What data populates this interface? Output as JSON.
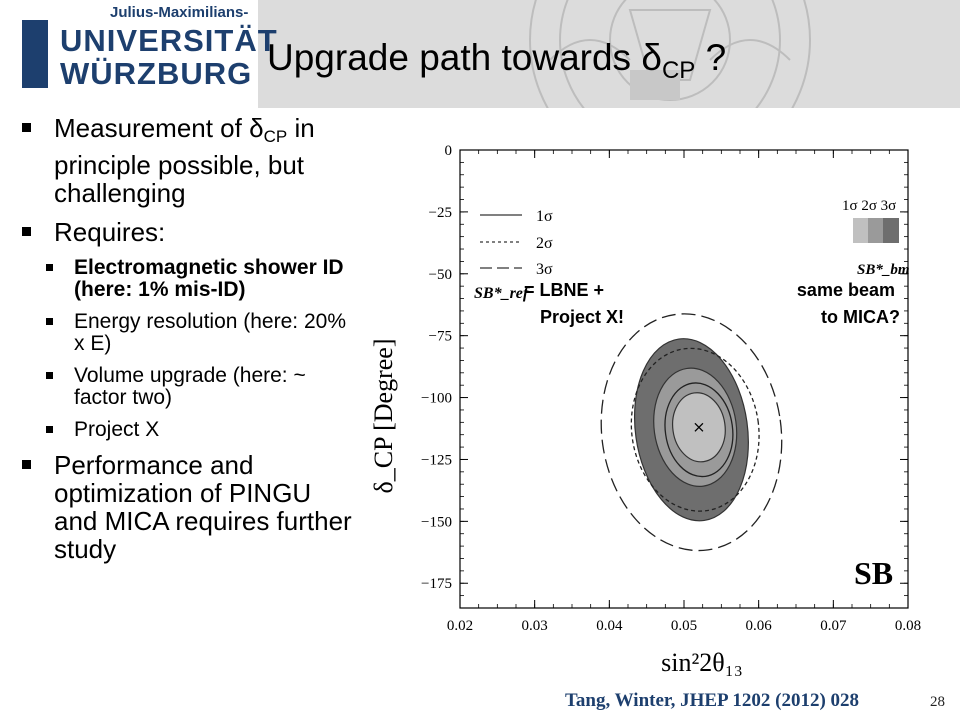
{
  "header": {
    "logo_top": "Julius-Maximilians-",
    "logo_line1": "UNIVERSITÄT",
    "logo_line2": "WÜRZBURG",
    "title_main": "Upgrade path towards ",
    "title_delta": "δ",
    "title_sub": "CP",
    "title_end": " ?"
  },
  "bullets": {
    "b1_text": "Measurement of ",
    "b1_delta": "δ",
    "b1_sub": "CP",
    "b1_rest": "in principle possible, but challenging",
    "b2_text": "Requires:",
    "sub1": "Electromagnetic shower ID (here: 1% mis-ID)",
    "sub2": "Energy resolution (here: 20% x E)",
    "sub3": "Volume upgrade (here: ~ factor two)",
    "sub4": "Project X",
    "b3_text": "Performance and optimization of PINGU and MICA requires further study"
  },
  "chart_data": {
    "type": "contour",
    "xlabel": "sin²2θ₁₃",
    "ylabel": "δ_CP [Degree]",
    "xlim": [
      0.02,
      0.08
    ],
    "ylim": [
      -185,
      0
    ],
    "x_ticks": [
      "0.02",
      "0.03",
      "0.04",
      "0.05",
      "0.06",
      "0.07",
      "0.08"
    ],
    "y_ticks": [
      "0",
      "−25",
      "−50",
      "−75",
      "−100",
      "−125",
      "−150",
      "−175"
    ],
    "best_fit": {
      "x": 0.052,
      "y": -112
    },
    "legend_ref": {
      "labels": [
        "1σ",
        "2σ",
        "3σ"
      ],
      "name": "SB*_ref",
      "annotation": "= LBNE + Project X!"
    },
    "legend_bm": {
      "labels": [
        "1σ 2σ 3σ"
      ],
      "name": "SB*_bm",
      "annotation": "same beam to MICA?"
    },
    "panel_label": "SB",
    "series": [
      {
        "name": "SB*_bm 1σ",
        "center": [
          0.052,
          -112
        ],
        "half_width": 0.0035,
        "half_height": 14,
        "fill": "#c0c0c0"
      },
      {
        "name": "SB*_bm 2σ",
        "center": [
          0.0515,
          -112
        ],
        "half_width": 0.0055,
        "half_height": 24,
        "fill": "#9a9a9a"
      },
      {
        "name": "SB*_bm 3σ",
        "center": [
          0.051,
          -113
        ],
        "half_width": 0.0075,
        "half_height": 37,
        "fill": "#6e6e6e"
      },
      {
        "name": "SB*_ref 1σ",
        "center": [
          0.052,
          -113
        ],
        "half_width": 0.0045,
        "half_height": 19,
        "style": "solid"
      },
      {
        "name": "SB*_ref 2σ",
        "center": [
          0.0515,
          -113
        ],
        "half_width": 0.0085,
        "half_height": 33,
        "style": "short-dash"
      },
      {
        "name": "SB*_ref 3σ",
        "center": [
          0.051,
          -114
        ],
        "half_width": 0.012,
        "half_height": 48,
        "style": "long-dash"
      }
    ]
  },
  "citation": "Tang, Winter, JHEP 1202 (2012) 028",
  "page_number": "28",
  "colors": {
    "logo_blue": "#1d3f6e",
    "header_gray": "#dcdcdc"
  }
}
